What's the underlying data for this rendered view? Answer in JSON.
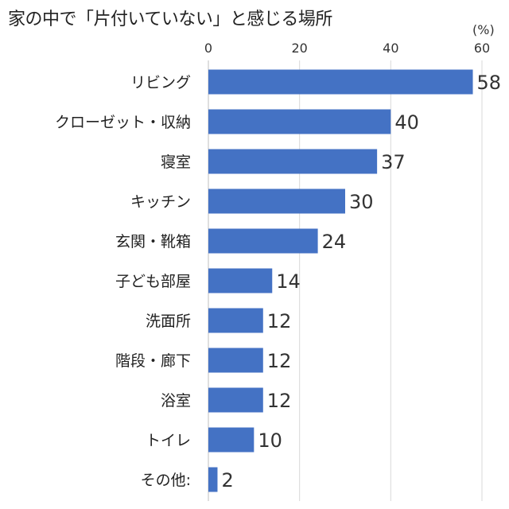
{
  "chart_data": {
    "type": "bar",
    "orientation": "horizontal",
    "title": "家の中で「片付いていない」と感じる場所",
    "unit": "(%)",
    "categories": [
      "リビング",
      "クローゼット・収納",
      "寝室",
      "キッチン",
      "玄関・靴箱",
      "子ども部屋",
      "洗面所",
      "階段・廊下",
      "浴室",
      "トイレ",
      "その他:"
    ],
    "values": [
      58,
      40,
      37,
      30,
      24,
      14,
      12,
      12,
      12,
      10,
      2
    ],
    "xlim": [
      0,
      60
    ],
    "xticks": [
      0,
      20,
      40,
      60
    ],
    "xtick_labels": [
      "0",
      "20",
      "40",
      "60"
    ],
    "bar_color": "#4472C4",
    "grid": true,
    "legend": "none"
  }
}
